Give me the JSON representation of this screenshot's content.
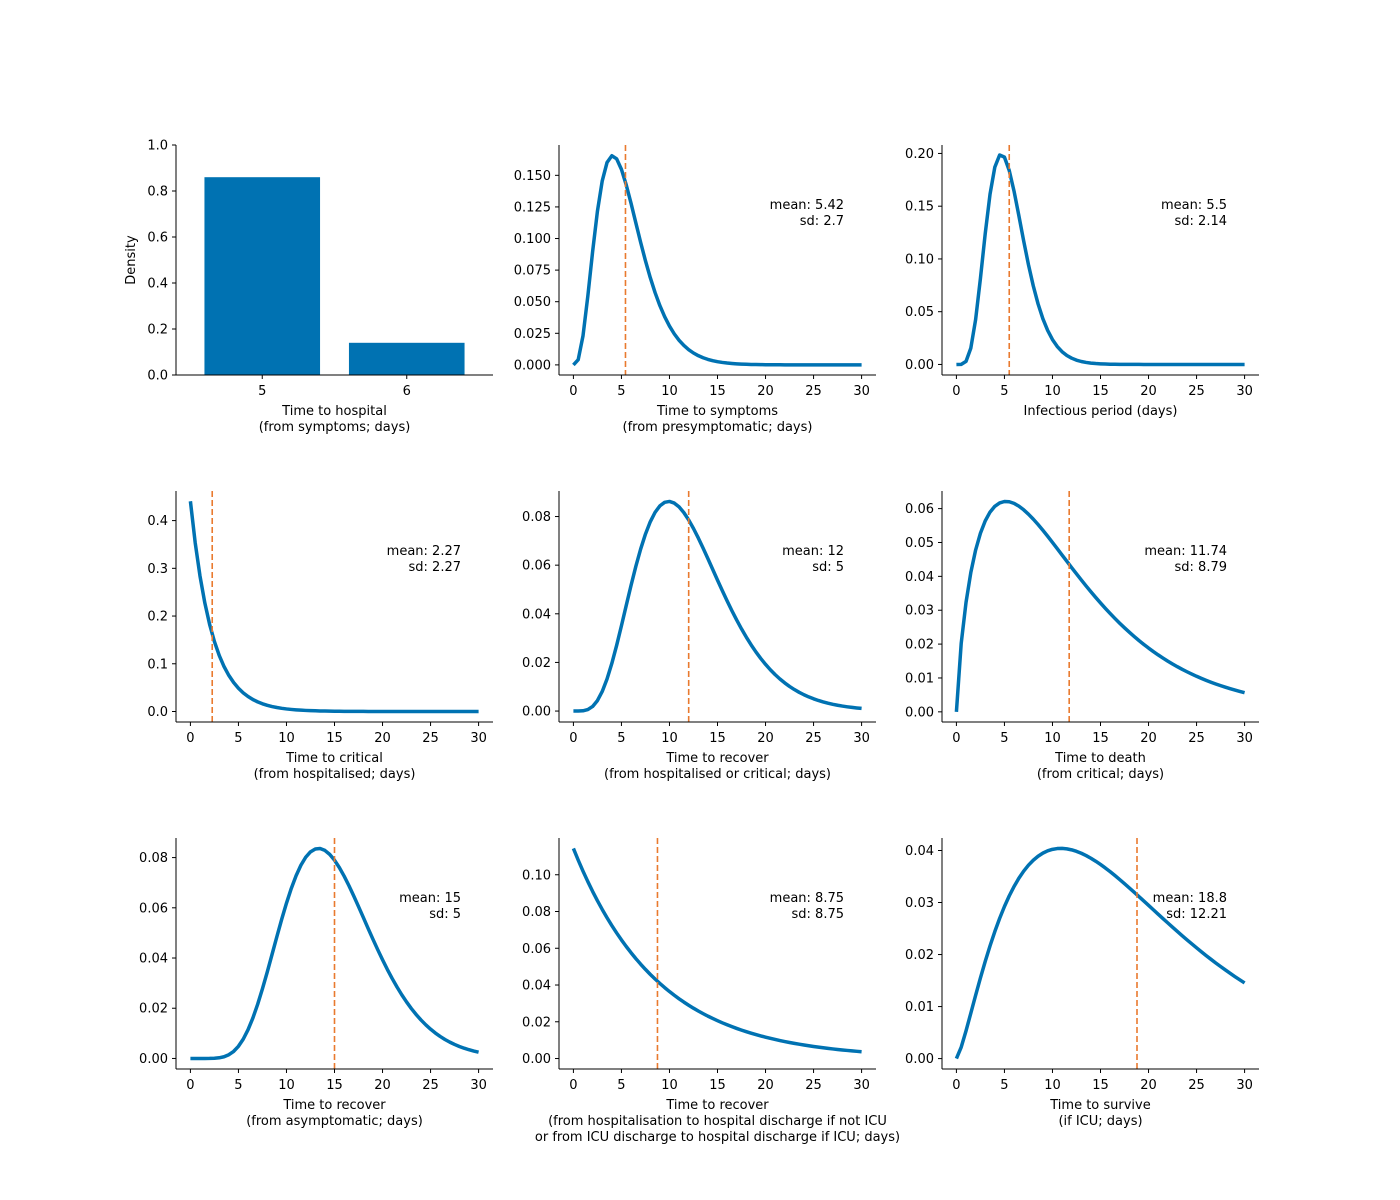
{
  "style": {
    "curve_color": "#0072B2",
    "bar_color": "#0072B2",
    "mean_line_color": "#E97A2F",
    "axis_color": "#000000"
  },
  "chart_data": [
    {
      "id": "hospital",
      "type": "bar",
      "categories": [
        "5",
        "6"
      ],
      "values": [
        0.86,
        0.14
      ],
      "ylim": [
        0,
        1.0
      ],
      "yticks": [
        "0.0",
        "0.2",
        "0.4",
        "0.6",
        "0.8",
        "1.0"
      ],
      "ylabel": "Density",
      "xlabel": [
        "Time to hospital",
        "(from symptoms; days)"
      ]
    },
    {
      "id": "symptoms",
      "type": "line",
      "dist": "gamma",
      "shape": 4.03,
      "scale": 1.345,
      "peak": 0.1655,
      "mean_line": 5.42,
      "ylim": [
        -0.008,
        0.174
      ],
      "yticks": [
        "0.000",
        "0.025",
        "0.050",
        "0.075",
        "0.100",
        "0.125",
        "0.150"
      ],
      "ytick_values": [
        0,
        0.025,
        0.05,
        0.075,
        0.1,
        0.125,
        0.15
      ],
      "annotation": [
        "mean: 5.42",
        "sd: 2.7"
      ],
      "xlabel": [
        "Time to symptoms",
        "(from presymptomatic; days)"
      ]
    },
    {
      "id": "infectious",
      "type": "line",
      "dist": "gamma",
      "shape": 6.6,
      "scale": 0.833,
      "peak": 0.1985,
      "mean_line": 5.5,
      "ylim": [
        -0.01,
        0.208
      ],
      "yticks": [
        "0.00",
        "0.05",
        "0.10",
        "0.15",
        "0.20"
      ],
      "ytick_values": [
        0,
        0.05,
        0.1,
        0.15,
        0.2
      ],
      "annotation": [
        "mean: 5.5",
        "sd: 2.14"
      ],
      "xlabel": [
        "Infectious period (days)"
      ]
    },
    {
      "id": "critical",
      "type": "line",
      "dist": "exp",
      "rate": 0.4405,
      "peak": 0.4405,
      "mean_line": 2.27,
      "ylim": [
        -0.022,
        0.462
      ],
      "yticks": [
        "0.0",
        "0.1",
        "0.2",
        "0.3",
        "0.4"
      ],
      "ytick_values": [
        0,
        0.1,
        0.2,
        0.3,
        0.4
      ],
      "annotation": [
        "mean: 2.27",
        "sd: 2.27"
      ],
      "xlabel": [
        "Time to critical",
        "(from hospitalised; days)"
      ]
    },
    {
      "id": "recover-hosp",
      "type": "line",
      "dist": "gamma",
      "shape": 5.76,
      "scale": 2.083,
      "peak": 0.0862,
      "mean_line": 12,
      "ylim": [
        -0.0045,
        0.0905
      ],
      "yticks": [
        "0.00",
        "0.02",
        "0.04",
        "0.06",
        "0.08"
      ],
      "ytick_values": [
        0,
        0.02,
        0.04,
        0.06,
        0.08
      ],
      "annotation": [
        "mean: 12",
        "sd: 5"
      ],
      "xlabel": [
        "Time to recover",
        "(from hospitalised or critical; days)"
      ]
    },
    {
      "id": "death",
      "type": "line",
      "dist": "gamma",
      "shape": 1.784,
      "scale": 6.58,
      "peak": 0.0621,
      "mean_line": 11.74,
      "ylim": [
        -0.003,
        0.0652
      ],
      "yticks": [
        "0.00",
        "0.01",
        "0.02",
        "0.03",
        "0.04",
        "0.05",
        "0.06"
      ],
      "ytick_values": [
        0,
        0.01,
        0.02,
        0.03,
        0.04,
        0.05,
        0.06
      ],
      "annotation": [
        "mean: 11.74",
        "sd: 8.79"
      ],
      "xlabel": [
        "Time to death",
        "(from critical; days)"
      ]
    },
    {
      "id": "recover-asym",
      "type": "line",
      "dist": "gamma",
      "shape": 9.0,
      "scale": 1.667,
      "peak": 0.0836,
      "mean_line": 15,
      "ylim": [
        -0.0042,
        0.0878
      ],
      "yticks": [
        "0.00",
        "0.02",
        "0.04",
        "0.06",
        "0.08"
      ],
      "ytick_values": [
        0,
        0.02,
        0.04,
        0.06,
        0.08
      ],
      "annotation": [
        "mean: 15",
        "sd: 5"
      ],
      "xlabel": [
        "Time to recover",
        "(from asymptomatic; days)"
      ]
    },
    {
      "id": "recover-discharge",
      "type": "line",
      "dist": "exp",
      "rate": 0.1143,
      "peak": 0.1143,
      "mean_line": 8.75,
      "ylim": [
        -0.0057,
        0.12
      ],
      "yticks": [
        "0.00",
        "0.02",
        "0.04",
        "0.06",
        "0.08",
        "0.10"
      ],
      "ytick_values": [
        0,
        0.02,
        0.04,
        0.06,
        0.08,
        0.1
      ],
      "annotation": [
        "mean: 8.75",
        "sd: 8.75"
      ],
      "xlabel": [
        "Time to recover",
        "(from hospitalisation to hospital discharge if not ICU",
        "or from ICU discharge to hospital discharge if ICU; days)"
      ]
    },
    {
      "id": "survive",
      "type": "line",
      "dist": "gamma",
      "shape": 2.37,
      "scale": 7.93,
      "peak": 0.0404,
      "mean_line": 18.8,
      "ylim": [
        -0.002,
        0.0424
      ],
      "yticks": [
        "0.00",
        "0.01",
        "0.02",
        "0.03",
        "0.04"
      ],
      "ytick_values": [
        0,
        0.01,
        0.02,
        0.03,
        0.04
      ],
      "annotation": [
        "mean: 18.8",
        "sd: 12.21"
      ],
      "xlabel": [
        "Time to survive",
        "(if ICU; days)"
      ]
    }
  ],
  "x_axis": {
    "xlim": [
      -1.5,
      31.5
    ],
    "ticks": [
      0,
      5,
      10,
      15,
      20,
      25,
      30
    ],
    "tick_labels": [
      "0",
      "5",
      "10",
      "15",
      "20",
      "25",
      "30"
    ]
  }
}
